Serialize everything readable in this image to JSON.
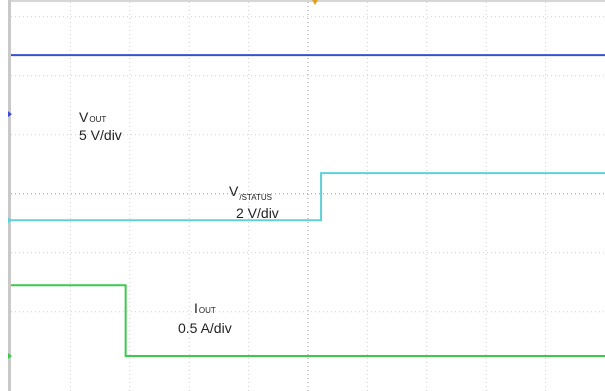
{
  "chart_data": {
    "type": "line",
    "title": "",
    "xlabel": "",
    "ylabel": "",
    "x": [
      0,
      1,
      2,
      3,
      4,
      5,
      6,
      7,
      8,
      9,
      10
    ],
    "series": [
      {
        "name": "V_OUT",
        "label_main": "V",
        "label_sub": "OUT",
        "scale": "5 V/div",
        "color": "#3a4fd6",
        "values": [
          0,
          0,
          0,
          0,
          0,
          0,
          0,
          0,
          0,
          0,
          0
        ],
        "offset_div": 5.1,
        "marker": "pointer"
      },
      {
        "name": "V_/STATUS",
        "label_main": "V",
        "label_sub": "/STATUS",
        "scale": "2 V/div",
        "color": "#5fd0d8",
        "values": [
          0,
          0,
          0,
          0,
          0,
          0,
          1,
          1,
          1,
          1,
          1
        ],
        "transition_x": 5.22,
        "offset_div": 2.3,
        "level_high_div": 0.8,
        "marker": "pointer"
      },
      {
        "name": "I_OUT",
        "label_main": "I",
        "label_sub": "OUT",
        "scale": "0.5 A/div",
        "color": "#3dc94a",
        "values": [
          1,
          1,
          0,
          0,
          0,
          0,
          0,
          0,
          0,
          0,
          0
        ],
        "transition_x": 1.93,
        "offset_div": 0.0,
        "level_high_div": 1.2,
        "marker": "pointer"
      }
    ],
    "grid": true,
    "divisions": {
      "x": 10,
      "y": 6
    },
    "xlim": [
      0,
      10
    ],
    "ylim": [
      0,
      6
    ]
  }
}
